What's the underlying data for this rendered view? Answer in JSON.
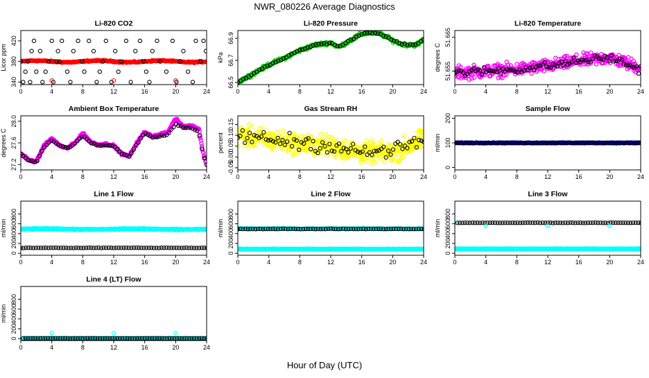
{
  "title": "NWR_080226  Average Diagnostics",
  "xlabel": "Hour of Day (UTC)",
  "chart_data": [
    {
      "type": "scatter",
      "title": "Li-820 CO2",
      "ylabel": "Licor ppm",
      "xlim": [
        0,
        24
      ],
      "ylim": [
        335,
        440
      ],
      "x_ticks": [
        0,
        4,
        8,
        12,
        16,
        20,
        24
      ],
      "y_ticks": [
        340,
        380,
        420
      ],
      "y_tick_labels": [
        "340",
        "380",
        "420"
      ],
      "bottom_fill": "#ff0000",
      "top_color": "#000000",
      "series": [
        {
          "color": "#ff0000",
          "marker": "dense",
          "x_start": 0,
          "x_end": 24,
          "center": 380,
          "amp": 1.5,
          "period": 8,
          "noise": 1,
          "n": 240,
          "size": 2.6
        },
        {
          "color": "#000000",
          "marker": "open",
          "x": [
            0.0,
            0.3,
            0.6,
            0.9,
            1.2,
            1.4,
            1.7,
            2.0,
            2.5,
            2.8,
            3.2,
            3.6,
            4.0,
            4.2,
            4.6,
            4.8,
            5.0,
            5.3,
            6.0,
            6.4,
            6.8,
            7.4,
            7.9,
            8.2,
            8.8,
            9.4,
            9.8,
            10.2,
            10.6,
            11.0,
            11.7,
            12.2,
            12.6,
            13.0,
            13.6,
            14.2,
            14.8,
            15.4,
            15.9,
            16.2,
            16.6,
            17.0,
            17.6,
            18.0,
            18.8,
            19.6,
            20.1,
            20.6,
            21.0,
            21.6,
            22.2,
            22.6,
            23.2,
            23.6,
            23.9
          ],
          "y": [
            380,
            340,
            360,
            380,
            340,
            400,
            420,
            360,
            400,
            340,
            360,
            380,
            420,
            340,
            380,
            400,
            380,
            420,
            360,
            340,
            400,
            420,
            380,
            360,
            420,
            400,
            340,
            360,
            380,
            420,
            340,
            400,
            360,
            380,
            420,
            340,
            400,
            420,
            380,
            360,
            340,
            400,
            420,
            380,
            360,
            420,
            340,
            380,
            400,
            360,
            340,
            420,
            380,
            420,
            400
          ],
          "size": 2.6
        },
        {
          "color": "#ff0000",
          "marker": "open",
          "x": [
            4.0,
            12.0,
            20.0
          ],
          "y": [
            343,
            343,
            343
          ],
          "size": 2.6
        }
      ]
    },
    {
      "type": "scatter",
      "title": "Li-820 Pressure",
      "ylabel": "kPa",
      "xlim": [
        0,
        24
      ],
      "ylim": [
        66.48,
        66.97
      ],
      "x_ticks": [
        0,
        4,
        8,
        12,
        16,
        20,
        24
      ],
      "y_ticks": [
        66.5,
        66.7,
        66.9
      ],
      "y_tick_labels": [
        "66.5",
        "66.7",
        "66.9"
      ],
      "bottom_fill": "#00cc00",
      "top_color": "#000000",
      "series": [
        {
          "color": "#00cc00",
          "marker": "dense",
          "x": [
            0,
            2,
            4,
            6,
            8,
            10,
            12,
            13,
            14,
            16,
            17,
            18,
            19,
            20,
            21,
            22,
            23,
            23.5,
            24
          ],
          "y": [
            66.5,
            66.58,
            66.66,
            66.72,
            66.79,
            66.84,
            66.86,
            66.82,
            66.86,
            66.94,
            66.95,
            66.95,
            66.92,
            66.88,
            66.85,
            66.84,
            66.84,
            66.86,
            66.89
          ],
          "noise": 0.012,
          "n": 300,
          "size": 2.6
        },
        {
          "color": "#000000",
          "marker": "open",
          "x": [
            0,
            2,
            4,
            6,
            8,
            10,
            12,
            13,
            14,
            16,
            17,
            18,
            19,
            20,
            21,
            22,
            23,
            23.5,
            24
          ],
          "y": [
            66.5,
            66.58,
            66.66,
            66.72,
            66.79,
            66.84,
            66.86,
            66.82,
            66.86,
            66.94,
            66.95,
            66.95,
            66.92,
            66.88,
            66.85,
            66.84,
            66.84,
            66.86,
            66.89
          ],
          "noise": 0.006,
          "n": 70,
          "size": 2.6
        }
      ]
    },
    {
      "type": "scatter",
      "title": "Li-820 Temperature",
      "ylabel": "degrees C",
      "xlim": [
        0,
        24
      ],
      "ylim": [
        51.651,
        51.667
      ],
      "x_ticks": [
        0,
        4,
        8,
        12,
        16,
        20,
        24
      ],
      "y_ticks": [
        51.655,
        51.665
      ],
      "y_tick_labels": [
        "51.655",
        "51.665"
      ],
      "bottom_fill": "#ff00ff",
      "top_color": "#000000",
      "series": [
        {
          "color": "#ff00ff",
          "marker": "dense",
          "x": [
            0,
            4,
            8,
            12,
            16,
            20,
            24
          ],
          "y": [
            51.6545,
            51.655,
            51.6555,
            51.6565,
            51.658,
            51.659,
            51.656
          ],
          "noise": 0.0016,
          "n": 420,
          "size": 2.6
        },
        {
          "color": "#000000",
          "marker": "open",
          "x": [
            0,
            4,
            8,
            12,
            16,
            20,
            24
          ],
          "y": [
            51.6545,
            51.655,
            51.6555,
            51.6565,
            51.658,
            51.659,
            51.6555
          ],
          "noise": 0.001,
          "n": 90,
          "size": 2.6
        }
      ]
    },
    {
      "type": "scatter",
      "title": "Ambient Box Temperature",
      "ylabel": "degrees C",
      "xlim": [
        0,
        24
      ],
      "ylim": [
        27.1,
        28.1
      ],
      "x_ticks": [
        0,
        4,
        8,
        12,
        16,
        20,
        24
      ],
      "y_ticks": [
        27.2,
        27.6,
        28.0
      ],
      "y_tick_labels": [
        "27.2",
        "27.6",
        "28.0"
      ],
      "bottom_fill": "#ff00ff",
      "top_color": "#000000",
      "series": [
        {
          "color": "#ff00ff",
          "marker": "dense",
          "x": [
            0,
            0.5,
            1,
            2,
            3,
            4,
            5,
            6,
            7,
            8,
            9,
            10,
            11,
            12,
            13,
            14,
            15,
            16,
            17,
            18,
            19,
            20,
            21,
            22,
            23,
            23.5,
            24
          ],
          "y": [
            27.4,
            27.35,
            27.28,
            27.25,
            27.55,
            27.68,
            27.55,
            27.5,
            27.6,
            27.78,
            27.62,
            27.56,
            27.58,
            27.55,
            27.4,
            27.35,
            27.6,
            27.8,
            27.72,
            27.75,
            27.8,
            28.05,
            27.9,
            27.92,
            27.86,
            27.45,
            27.2
          ],
          "noise": 0.015,
          "n": 360,
          "size": 2.6
        },
        {
          "color": "#000000",
          "marker": "open",
          "x": [
            0,
            0.5,
            1,
            2,
            3,
            4,
            5,
            6,
            7,
            8,
            9,
            10,
            11,
            12,
            13,
            14,
            15,
            16,
            17,
            18,
            19,
            20,
            21,
            22,
            23,
            23.5,
            24
          ],
          "y": [
            27.4,
            27.33,
            27.28,
            27.24,
            27.52,
            27.65,
            27.55,
            27.5,
            27.58,
            27.74,
            27.6,
            27.55,
            27.56,
            27.54,
            27.4,
            27.35,
            27.58,
            27.78,
            27.7,
            27.72,
            27.76,
            27.95,
            27.88,
            27.88,
            27.8,
            27.4,
            27.2
          ],
          "noise": 0.01,
          "n": 80,
          "size": 2.6
        }
      ]
    },
    {
      "type": "scatter",
      "title": "Gas Stream RH",
      "ylabel": "percent",
      "xlim": [
        0,
        24
      ],
      "ylim": [
        -0.06,
        0.19
      ],
      "x_ticks": [
        0,
        4,
        8,
        12,
        16,
        20,
        24
      ],
      "y_ticks": [
        -0.05,
        0.05,
        0.15
      ],
      "y_tick_labels": [
        "-0.05",
        "0.05",
        "0.15"
      ],
      "y_ticks_minor": [
        0.0,
        0.1
      ],
      "y_tick_labels_minor": [
        "0.00",
        "0.10"
      ],
      "bottom_fill": "#ffff00",
      "top_color": "#000000",
      "series": [
        {
          "color": "#ffff00",
          "marker": "dense",
          "x": [
            0,
            4,
            8,
            12,
            16,
            20,
            24
          ],
          "y": [
            0.1,
            0.08,
            0.06,
            0.05,
            0.02,
            0.02,
            0.08
          ],
          "noise": 0.04,
          "n": 500,
          "size": 2.6
        },
        {
          "color": "#000000",
          "marker": "open",
          "x": [
            0,
            4,
            8,
            12,
            16,
            20,
            24
          ],
          "y": [
            0.1,
            0.08,
            0.07,
            0.05,
            0.02,
            0.03,
            0.08
          ],
          "noise": 0.03,
          "n": 80,
          "size": 2.6
        }
      ]
    },
    {
      "type": "scatter",
      "title": "Sample Flow",
      "ylabel": "ml/min",
      "xlim": [
        0,
        24
      ],
      "ylim": [
        -10,
        210
      ],
      "x_ticks": [
        0,
        4,
        8,
        12,
        16,
        20,
        24
      ],
      "y_ticks": [
        0,
        100,
        200
      ],
      "y_tick_labels": [
        "0",
        "100",
        "200"
      ],
      "bottom_fill": "#0000cc",
      "top_color": "#000000",
      "series": [
        {
          "color": "#0000cc",
          "marker": "dense",
          "x_start": 0,
          "x_end": 24,
          "center": 100,
          "amp": 0,
          "period": 8,
          "noise": 1.2,
          "n": 300,
          "size": 2.6
        },
        {
          "color": "#000000",
          "marker": "open",
          "x_start": 0,
          "x_end": 24,
          "center": 100,
          "amp": 0,
          "period": 8,
          "noise": 0.8,
          "n": 75,
          "size": 2.6
        }
      ]
    },
    {
      "type": "scatter",
      "title": "Line 1 Flow",
      "ylabel": "ml/min",
      "xlim": [
        0,
        24
      ],
      "ylim": [
        -40,
        1060
      ],
      "x_ticks": [
        0,
        4,
        8,
        12,
        16,
        20,
        24
      ],
      "y_ticks": [
        0,
        200,
        400,
        600,
        800
      ],
      "y_tick_labels": [
        "0",
        "200",
        "400",
        "600",
        "800"
      ],
      "bottom_fill": "#00ffff",
      "top_color": "#000000",
      "series": [
        {
          "color": "#00ffff",
          "marker": "dense",
          "x_start": 0,
          "x_end": 24,
          "center": 490,
          "amp": 6,
          "period": 12,
          "noise": 10,
          "n": 420,
          "size": 2.6
        },
        {
          "color": "#000000",
          "marker": "open",
          "x_start": 0,
          "x_end": 24,
          "center": 110,
          "amp": 0,
          "period": 8,
          "noise": 3,
          "n": 75,
          "size": 2.6
        }
      ]
    },
    {
      "type": "scatter",
      "title": "Line 2 Flow",
      "ylabel": "ml/min",
      "xlim": [
        0,
        24
      ],
      "ylim": [
        -40,
        1060
      ],
      "x_ticks": [
        0,
        4,
        8,
        12,
        16,
        20,
        24
      ],
      "y_ticks": [
        0,
        200,
        400,
        600,
        800
      ],
      "y_tick_labels": [
        "0",
        "200",
        "400",
        "600",
        "800"
      ],
      "bottom_fill": "#00ffff",
      "top_color": "#000000",
      "series": [
        {
          "color": "#00ffff",
          "marker": "dense",
          "x_start": 0,
          "x_end": 24,
          "center": 85,
          "amp": 0,
          "period": 8,
          "noise": 6,
          "n": 420,
          "size": 2.6
        },
        {
          "color": "#00ffff",
          "marker": "dense",
          "x_start": 0,
          "x_end": 24,
          "center": 500,
          "amp": 0,
          "period": 8,
          "noise": 8,
          "n": 120,
          "size": 2.6
        },
        {
          "color": "#000000",
          "marker": "open",
          "x_start": 0,
          "x_end": 24,
          "center": 495,
          "amp": 0,
          "period": 8,
          "noise": 3,
          "n": 75,
          "size": 2.6
        }
      ]
    },
    {
      "type": "scatter",
      "title": "Line 3 Flow",
      "ylabel": "ml/min",
      "xlim": [
        0,
        24
      ],
      "ylim": [
        -40,
        1060
      ],
      "x_ticks": [
        0,
        4,
        8,
        12,
        16,
        20,
        24
      ],
      "y_ticks": [
        0,
        200,
        400,
        600,
        800
      ],
      "y_tick_labels": [
        "0",
        "200",
        "400",
        "600",
        "800"
      ],
      "bottom_fill": "#00ffff",
      "top_color": "#000000",
      "series": [
        {
          "color": "#00ffff",
          "marker": "dense",
          "x_start": 0,
          "x_end": 24,
          "center": 90,
          "amp": 0,
          "period": 8,
          "noise": 5,
          "n": 420,
          "size": 2.6
        },
        {
          "color": "#000000",
          "marker": "open",
          "x_start": 0,
          "x_end": 24,
          "center": 620,
          "amp": 0,
          "period": 8,
          "noise": 3,
          "n": 75,
          "size": 2.6
        },
        {
          "color": "#00ffff",
          "marker": "open",
          "x": [
            0.0,
            4.0,
            12.0,
            20.0
          ],
          "y": [
            620,
            560,
            560,
            560
          ],
          "size": 2.6
        }
      ]
    },
    {
      "type": "scatter",
      "title": "Line 4 (LT) Flow",
      "ylabel": "ml/min",
      "xlim": [
        0,
        24
      ],
      "ylim": [
        -40,
        1060
      ],
      "x_ticks": [
        0,
        4,
        8,
        12,
        16,
        20,
        24
      ],
      "y_ticks": [
        0,
        200,
        400,
        600,
        800
      ],
      "y_tick_labels": [
        "0",
        "200",
        "400",
        "600",
        "800"
      ],
      "bottom_fill": "#00ffff",
      "top_color": "#000000",
      "series": [
        {
          "color": "#00ffff",
          "marker": "dense",
          "x_start": 0,
          "x_end": 24,
          "center": 5,
          "amp": 0,
          "period": 8,
          "noise": 3,
          "n": 300,
          "size": 2.6
        },
        {
          "color": "#000000",
          "marker": "open",
          "x_start": 0.3,
          "x_end": 24,
          "center": 5,
          "amp": 0,
          "period": 8,
          "noise": 2,
          "n": 75,
          "size": 2.6
        },
        {
          "color": "#00ffff",
          "marker": "open",
          "x": [
            0.0,
            4.0,
            12.0,
            20.0
          ],
          "y": [
            5,
            110,
            110,
            110
          ],
          "size": 2.6
        }
      ]
    }
  ]
}
